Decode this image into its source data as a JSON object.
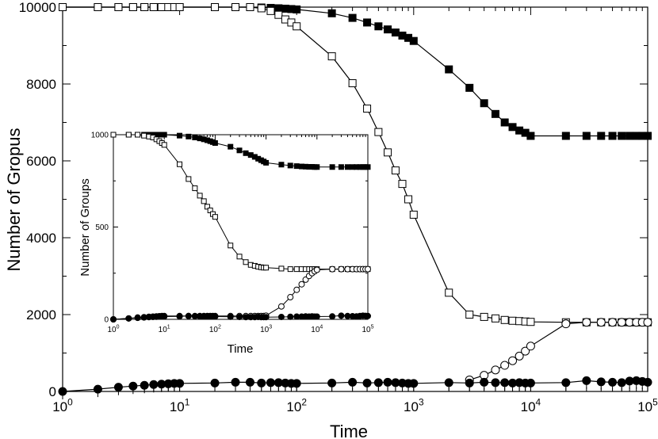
{
  "chart_data": [
    {
      "type": "line",
      "xscale": "log",
      "xlabel": "Time",
      "ylabel": "Number of Gropus",
      "xlim": [
        1,
        100000
      ],
      "ylim": [
        0,
        10000
      ],
      "xticks": [
        1,
        10,
        100,
        1000,
        10000,
        100000
      ],
      "yticks": [
        0,
        2000,
        4000,
        6000,
        8000,
        10000
      ],
      "series": [
        {
          "marker": "filled-square",
          "x": [
            1,
            2,
            3,
            4,
            5,
            6,
            7,
            8,
            9,
            10,
            20,
            30,
            40,
            50,
            60,
            70,
            80,
            90,
            100,
            200,
            300,
            400,
            500,
            600,
            700,
            800,
            900,
            1000,
            2000,
            3000,
            4000,
            5000,
            6000,
            7000,
            8000,
            9000,
            10000,
            20000,
            30000,
            40000,
            50000,
            60000,
            70000,
            80000,
            90000,
            100000
          ],
          "y": [
            10000,
            10000,
            10000,
            10000,
            10000,
            10000,
            10000,
            10000,
            10000,
            10000,
            10000,
            10000,
            10000,
            9990,
            9980,
            9970,
            9960,
            9950,
            9940,
            9840,
            9720,
            9600,
            9500,
            9420,
            9340,
            9260,
            9200,
            9120,
            8380,
            7900,
            7500,
            7220,
            7000,
            6880,
            6790,
            6730,
            6650,
            6650,
            6650,
            6650,
            6650,
            6650,
            6650,
            6650,
            6650,
            6650
          ]
        },
        {
          "marker": "open-square",
          "x": [
            1,
            2,
            3,
            4,
            5,
            6,
            7,
            8,
            9,
            10,
            20,
            30,
            40,
            50,
            60,
            70,
            80,
            90,
            100,
            200,
            300,
            400,
            500,
            600,
            700,
            800,
            900,
            1000,
            2000,
            3000,
            4000,
            5000,
            6000,
            7000,
            8000,
            9000,
            10000,
            20000,
            30000,
            40000,
            50000,
            60000,
            70000,
            80000,
            90000,
            100000
          ],
          "y": [
            10000,
            10000,
            10000,
            10000,
            10000,
            10000,
            10000,
            10000,
            10000,
            10000,
            10000,
            10000,
            10000,
            9970,
            9900,
            9800,
            9680,
            9600,
            9500,
            8720,
            8020,
            7360,
            6750,
            6220,
            5750,
            5400,
            5000,
            4600,
            2570,
            2000,
            1940,
            1900,
            1860,
            1840,
            1830,
            1820,
            1810,
            1800,
            1800,
            1800,
            1800,
            1800,
            1800,
            1800,
            1800,
            1800
          ]
        },
        {
          "marker": "open-circle",
          "x": [
            3000,
            4000,
            5000,
            6000,
            7000,
            8000,
            9000,
            10000,
            20000,
            30000,
            40000,
            50000,
            60000,
            70000,
            80000,
            90000,
            100000
          ],
          "y": [
            300,
            420,
            560,
            680,
            800,
            920,
            1050,
            1180,
            1760,
            1800,
            1800,
            1800,
            1800,
            1800,
            1800,
            1800,
            1800
          ]
        },
        {
          "marker": "filled-circle",
          "x": [
            1,
            2,
            3,
            4,
            5,
            6,
            7,
            8,
            9,
            10,
            20,
            30,
            40,
            50,
            60,
            70,
            80,
            90,
            100,
            200,
            300,
            400,
            500,
            600,
            700,
            800,
            900,
            1000,
            2000,
            3000,
            4000,
            5000,
            6000,
            7000,
            8000,
            9000,
            10000,
            20000,
            30000,
            40000,
            50000,
            60000,
            70000,
            80000,
            90000,
            100000
          ],
          "y": [
            0,
            60,
            110,
            140,
            160,
            180,
            190,
            200,
            210,
            210,
            220,
            240,
            240,
            220,
            230,
            230,
            220,
            210,
            210,
            220,
            240,
            220,
            230,
            240,
            230,
            220,
            210,
            210,
            230,
            220,
            240,
            230,
            230,
            220,
            230,
            220,
            220,
            230,
            280,
            250,
            240,
            230,
            270,
            280,
            260,
            240
          ]
        }
      ]
    },
    {
      "type": "line",
      "inset": true,
      "xscale": "log",
      "xlabel": "Time",
      "ylabel": "Number of Groups",
      "xlim": [
        1,
        100000
      ],
      "ylim": [
        0,
        1000
      ],
      "xticks": [
        1,
        10,
        100,
        1000,
        10000,
        100000
      ],
      "yticks": [
        0,
        500,
        1000
      ],
      "series": [
        {
          "marker": "filled-square",
          "x": [
            1,
            2,
            3,
            4,
            5,
            6,
            7,
            8,
            9,
            10,
            20,
            30,
            40,
            50,
            60,
            70,
            80,
            90,
            100,
            200,
            300,
            400,
            500,
            600,
            700,
            800,
            900,
            1000,
            2000,
            3000,
            4000,
            5000,
            6000,
            7000,
            8000,
            9000,
            10000,
            20000,
            30000,
            40000,
            50000,
            60000,
            70000,
            80000,
            90000,
            100000
          ],
          "y": [
            1000,
            1000,
            1000,
            1000,
            1000,
            1000,
            1000,
            1000,
            1000,
            1000,
            995,
            990,
            985,
            980,
            975,
            970,
            965,
            960,
            955,
            935,
            915,
            900,
            890,
            880,
            870,
            862,
            855,
            848,
            838,
            833,
            830,
            828,
            827,
            826,
            826,
            825,
            825,
            825,
            825,
            825,
            825,
            825,
            825,
            825,
            825,
            825
          ]
        },
        {
          "marker": "open-square",
          "x": [
            1,
            2,
            3,
            4,
            5,
            6,
            7,
            8,
            9,
            10,
            20,
            30,
            40,
            50,
            60,
            70,
            80,
            90,
            100,
            200,
            300,
            400,
            500,
            600,
            700,
            800,
            900,
            1000,
            2000,
            3000,
            4000,
            5000,
            6000,
            7000,
            8000,
            9000,
            10000,
            20000,
            30000,
            40000,
            50000,
            60000,
            70000,
            80000,
            90000,
            100000
          ],
          "y": [
            1000,
            1000,
            1000,
            995,
            990,
            985,
            975,
            965,
            955,
            945,
            840,
            760,
            710,
            670,
            640,
            610,
            590,
            570,
            555,
            400,
            340,
            310,
            295,
            290,
            285,
            282,
            280,
            280,
            275,
            272,
            272,
            272,
            272,
            272,
            272,
            272,
            272,
            272,
            272,
            272,
            272,
            272,
            272,
            272,
            272,
            272
          ]
        },
        {
          "marker": "open-circle",
          "x": [
            1,
            2,
            3,
            4,
            5,
            6,
            7,
            8,
            9,
            10,
            20,
            30,
            40,
            50,
            60,
            70,
            80,
            90,
            100,
            200,
            300,
            400,
            500,
            600,
            700,
            800,
            900,
            1000,
            2000,
            3000,
            4000,
            5000,
            6000,
            7000,
            8000,
            9000,
            10000,
            20000,
            30000,
            40000,
            50000,
            60000,
            70000,
            80000,
            90000,
            100000
          ],
          "y": [
            0,
            5,
            10,
            12,
            14,
            15,
            16,
            17,
            18,
            18,
            18,
            18,
            18,
            18,
            18,
            18,
            18,
            18,
            18,
            18,
            18,
            18,
            18,
            18,
            18,
            18,
            18,
            20,
            70,
            120,
            160,
            190,
            215,
            235,
            250,
            260,
            268,
            272,
            272,
            272,
            272,
            272,
            272,
            272,
            272,
            272
          ]
        },
        {
          "marker": "filled-circle",
          "x": [
            1,
            2,
            3,
            4,
            5,
            6,
            7,
            8,
            9,
            10,
            20,
            30,
            40,
            50,
            60,
            70,
            80,
            90,
            100,
            200,
            300,
            400,
            500,
            600,
            700,
            800,
            900,
            1000,
            2000,
            3000,
            4000,
            5000,
            6000,
            7000,
            8000,
            9000,
            10000,
            20000,
            30000,
            40000,
            50000,
            60000,
            70000,
            80000,
            90000,
            100000
          ],
          "y": [
            0,
            5,
            8,
            10,
            12,
            13,
            14,
            15,
            15,
            15,
            16,
            18,
            17,
            16,
            15,
            16,
            17,
            16,
            15,
            14,
            13,
            12,
            12,
            12,
            13,
            12,
            12,
            12,
            13,
            14,
            15,
            15,
            16,
            15,
            16,
            15,
            15,
            16,
            20,
            18,
            17,
            16,
            18,
            20,
            19,
            18
          ]
        }
      ]
    }
  ]
}
